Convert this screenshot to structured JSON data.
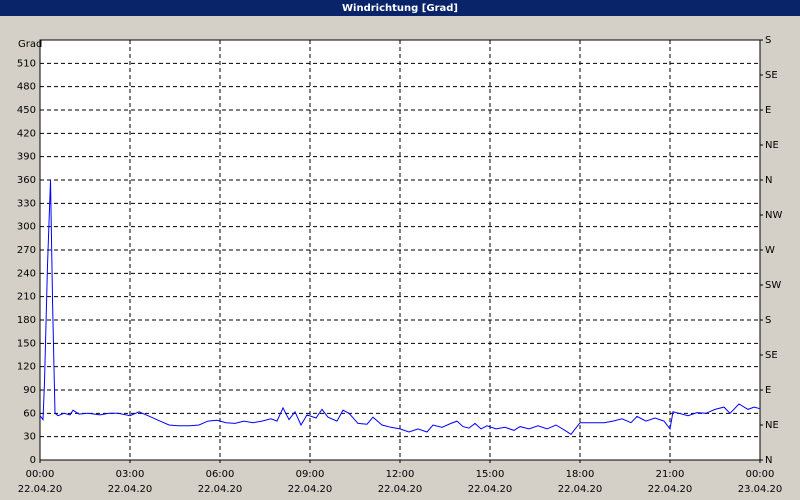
{
  "chart_data": {
    "type": "line",
    "title": "Windrichtung [Grad]",
    "y_label": "Grad",
    "xlim": [
      0,
      24
    ],
    "ylim": [
      0,
      540
    ],
    "y2lim": [
      0,
      540
    ],
    "grid": true,
    "xticks": [
      {
        "value": 0,
        "label": "00:00"
      },
      {
        "value": 3,
        "label": "03:00"
      },
      {
        "value": 6,
        "label": "06:00"
      },
      {
        "value": 9,
        "label": "09:00"
      },
      {
        "value": 12,
        "label": "12:00"
      },
      {
        "value": 15,
        "label": "15:00"
      },
      {
        "value": 18,
        "label": "18:00"
      },
      {
        "value": 21,
        "label": "21:00"
      },
      {
        "value": 24,
        "label": "00:00"
      }
    ],
    "xtick_dates": [
      "22.04.20",
      "22.04.20",
      "22.04.20",
      "22.04.20",
      "22.04.20",
      "22.04.20",
      "22.04.20",
      "22.04.20",
      "23.04.20"
    ],
    "yticks": [
      0,
      30,
      60,
      90,
      120,
      150,
      180,
      210,
      240,
      270,
      300,
      330,
      360,
      390,
      420,
      450,
      480,
      510
    ],
    "y2ticks": [
      {
        "value": 0,
        "label": "N"
      },
      {
        "value": 45,
        "label": "NE"
      },
      {
        "value": 90,
        "label": "E"
      },
      {
        "value": 135,
        "label": "SE"
      },
      {
        "value": 180,
        "label": "S"
      },
      {
        "value": 225,
        "label": "SW"
      },
      {
        "value": 270,
        "label": "W"
      },
      {
        "value": 315,
        "label": "NW"
      },
      {
        "value": 360,
        "label": "N"
      },
      {
        "value": 405,
        "label": "NE"
      },
      {
        "value": 450,
        "label": "E"
      },
      {
        "value": 495,
        "label": "SE"
      },
      {
        "value": 540,
        "label": "S"
      }
    ],
    "x": [
      0,
      0.1,
      0.15,
      0.25,
      0.35,
      0.42,
      0.5,
      0.6,
      0.8,
      1.0,
      1.1,
      1.3,
      1.6,
      2.0,
      2.3,
      2.6,
      3.0,
      3.3,
      3.6,
      4.0,
      4.3,
      4.6,
      5.0,
      5.3,
      5.6,
      5.9,
      6.2,
      6.5,
      6.8,
      7.1,
      7.4,
      7.7,
      7.9,
      8.1,
      8.3,
      8.5,
      8.7,
      8.9,
      9.2,
      9.4,
      9.6,
      9.9,
      10.1,
      10.3,
      10.6,
      10.9,
      11.1,
      11.4,
      11.7,
      12.0,
      12.3,
      12.6,
      12.9,
      13.1,
      13.4,
      13.7,
      13.9,
      14.1,
      14.3,
      14.5,
      14.7,
      14.9,
      15.2,
      15.5,
      15.8,
      16.0,
      16.3,
      16.6,
      16.9,
      17.2,
      17.5,
      17.7,
      18.0,
      18.4,
      18.8,
      19.1,
      19.4,
      19.7,
      19.9,
      20.2,
      20.5,
      20.8,
      21.0,
      21.1,
      21.3,
      21.6,
      21.9,
      22.2,
      22.5,
      22.8,
      23.0,
      23.3,
      23.6,
      23.8,
      24.0
    ],
    "series": [
      {
        "color": "#0000ff",
        "values": [
          57,
          52,
          100,
          250,
          360,
          200,
          60,
          57,
          60,
          58,
          64,
          59,
          60,
          58,
          60,
          60,
          57,
          62,
          57,
          50,
          45,
          44,
          44,
          45,
          50,
          51,
          48,
          47,
          50,
          48,
          50,
          53,
          50,
          67,
          52,
          62,
          45,
          58,
          54,
          65,
          55,
          50,
          64,
          60,
          47,
          46,
          55,
          45,
          42,
          40,
          36,
          40,
          36,
          45,
          42,
          47,
          50,
          43,
          41,
          47,
          40,
          44,
          40,
          42,
          38,
          43,
          40,
          44,
          40,
          45,
          38,
          33,
          48,
          48,
          48,
          50,
          53,
          48,
          56,
          50,
          54,
          50,
          40,
          62,
          60,
          57,
          61,
          60,
          65,
          68,
          60,
          72,
          65,
          68,
          66
        ]
      }
    ]
  }
}
